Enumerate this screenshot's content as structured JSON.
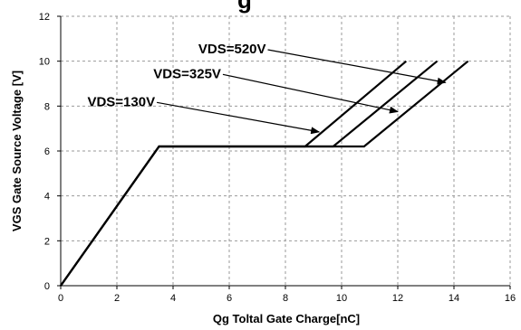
{
  "chart_data": {
    "type": "line",
    "title": "",
    "title_fragment": "g",
    "xlabel": "Qg Toltal Gate Charge[nC]",
    "ylabel": "VGS Gate Source Voltage [V]",
    "xlim": [
      0,
      16
    ],
    "ylim": [
      0,
      12
    ],
    "xticks": [
      0,
      2,
      4,
      6,
      8,
      10,
      12,
      14,
      16
    ],
    "yticks": [
      0,
      2,
      4,
      6,
      8,
      10,
      12
    ],
    "grid": true,
    "series": [
      {
        "name": "VDS=130V",
        "x": [
          0,
          3.5,
          8.7,
          12.3
        ],
        "y": [
          0,
          6.2,
          6.2,
          10
        ]
      },
      {
        "name": "VDS=325V",
        "x": [
          0,
          3.5,
          9.7,
          13.4
        ],
        "y": [
          0,
          6.2,
          6.2,
          10
        ]
      },
      {
        "name": "VDS=520V",
        "x": [
          0,
          3.5,
          10.8,
          14.5
        ],
        "y": [
          0,
          6.2,
          6.2,
          10
        ]
      }
    ],
    "annotations": [
      {
        "text": "VDS=520V",
        "series": "VDS=520V",
        "text_at": [
          4.9,
          10.35
        ],
        "arrow_to": [
          13.7,
          9.05
        ]
      },
      {
        "text": "VDS=325V",
        "series": "VDS=325V",
        "text_at": [
          3.3,
          9.25
        ],
        "arrow_to": [
          12.0,
          7.75
        ]
      },
      {
        "text": "VDS=130V",
        "series": "VDS=130V",
        "text_at": [
          0.95,
          8.0
        ],
        "arrow_to": [
          9.2,
          6.85
        ]
      }
    ],
    "line_color": "#000000",
    "grid_color": "#9a9a9a"
  }
}
